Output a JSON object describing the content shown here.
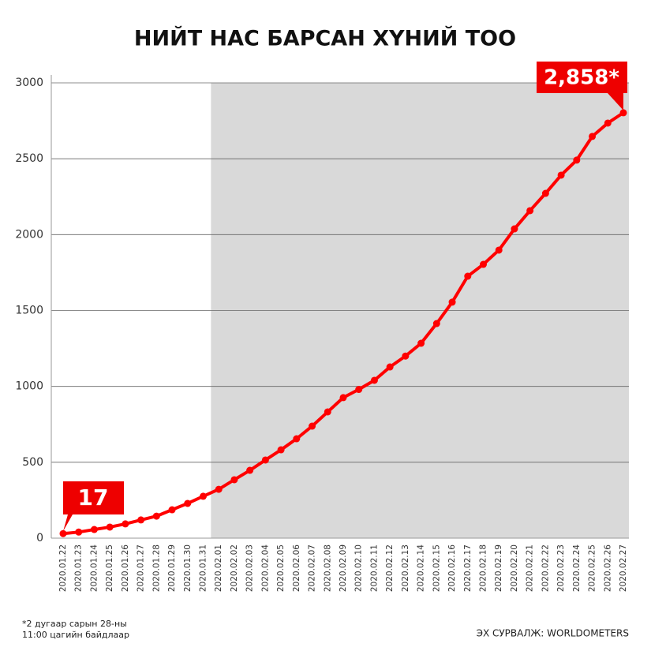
{
  "chart_data": {
    "type": "line",
    "title": "НИЙТ НАС БАРСАН ХҮНИЙ ТОО",
    "categories": [
      "2020.01.22",
      "2020.01.23",
      "2020.01.24",
      "2020.01.25",
      "2020.01.26",
      "2020.01.27",
      "2020.01.28",
      "2020.01.29",
      "2020.01.30",
      "2020.01.31",
      "2020.02.01",
      "2020.02.02",
      "2020.02.03",
      "2020.02.04",
      "2020.02.05",
      "2020.02.06",
      "2020.02.07",
      "2020.02.08",
      "2020.02.09",
      "2020.02.10",
      "2020.02.11",
      "2020.02.12",
      "2020.02.13",
      "2020.02.14",
      "2020.02.15",
      "2020.02.16",
      "2020.02.17",
      "2020.02.18",
      "2020.02.19",
      "2020.02.20",
      "2020.02.21",
      "2020.02.22",
      "2020.02.23",
      "2020.02.24",
      "2020.02.25",
      "2020.02.26",
      "2020.02.27"
    ],
    "values": [
      30,
      40,
      57,
      73,
      94,
      120,
      145,
      187,
      229,
      276,
      322,
      385,
      447,
      515,
      582,
      655,
      738,
      832,
      926,
      980,
      1040,
      1128,
      1200,
      1284,
      1414,
      1555,
      1726,
      1804,
      1898,
      2038,
      2158,
      2272,
      2392,
      2491,
      2647,
      2735,
      2803
    ],
    "color": "#ff0000",
    "ylim": [
      0,
      3000
    ],
    "yticks": [
      0,
      500,
      1000,
      1500,
      2000,
      2500,
      3000
    ],
    "grid": true,
    "annotations": [
      "17",
      "2,858*"
    ],
    "footnote": [
      "*2 дугаар сарын 28-ны",
      "11:00 цагийн байдлаар"
    ],
    "source": "ЭХ СУРВАЛЖ: WORLDOMETERS"
  }
}
